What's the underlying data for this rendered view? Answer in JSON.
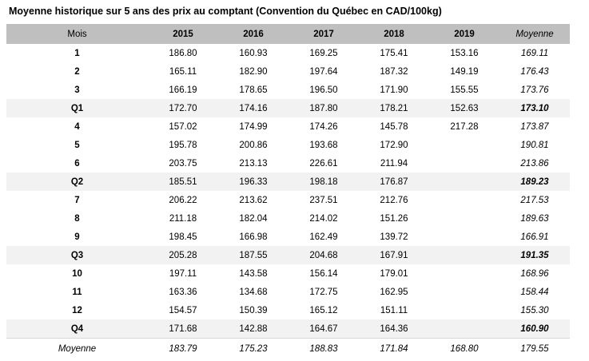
{
  "title": "Moyenne historique sur 5 ans des prix au comptant (Convention du Québec en CAD/100kg)",
  "colors": {
    "header_bg": "#bfbfbf",
    "quarter_bg": "#f2f2f2",
    "row_border": "#d9d9d9",
    "text": "#000000",
    "background": "#ffffff"
  },
  "table": {
    "columns": [
      "Mois",
      "2015",
      "2016",
      "2017",
      "2018",
      "2019",
      "Moyenne"
    ],
    "rows": [
      {
        "type": "month",
        "label": "1",
        "values": [
          "186.80",
          "160.93",
          "169.25",
          "175.41",
          "153.16"
        ],
        "moyenne": "169.11"
      },
      {
        "type": "month",
        "label": "2",
        "values": [
          "165.11",
          "182.90",
          "197.64",
          "187.32",
          "149.19"
        ],
        "moyenne": "176.43"
      },
      {
        "type": "month",
        "label": "3",
        "values": [
          "166.19",
          "178.65",
          "196.50",
          "171.90",
          "155.55"
        ],
        "moyenne": "173.76"
      },
      {
        "type": "quarter",
        "label": "Q1",
        "values": [
          "172.70",
          "174.16",
          "187.80",
          "178.21",
          "152.63"
        ],
        "moyenne": "173.10"
      },
      {
        "type": "month",
        "label": "4",
        "values": [
          "157.02",
          "174.99",
          "174.26",
          "145.78",
          "217.28"
        ],
        "moyenne": "173.87"
      },
      {
        "type": "month",
        "label": "5",
        "values": [
          "195.78",
          "200.86",
          "193.68",
          "172.90",
          ""
        ],
        "moyenne": "190.81"
      },
      {
        "type": "month",
        "label": "6",
        "values": [
          "203.75",
          "213.13",
          "226.61",
          "211.94",
          ""
        ],
        "moyenne": "213.86"
      },
      {
        "type": "quarter",
        "label": "Q2",
        "values": [
          "185.51",
          "196.33",
          "198.18",
          "176.87",
          ""
        ],
        "moyenne": "189.23"
      },
      {
        "type": "month",
        "label": "7",
        "values": [
          "206.22",
          "213.62",
          "237.51",
          "212.76",
          ""
        ],
        "moyenne": "217.53"
      },
      {
        "type": "month",
        "label": "8",
        "values": [
          "211.18",
          "182.04",
          "214.02",
          "151.26",
          ""
        ],
        "moyenne": "189.63"
      },
      {
        "type": "month",
        "label": "9",
        "values": [
          "198.45",
          "166.98",
          "162.49",
          "139.72",
          ""
        ],
        "moyenne": "166.91"
      },
      {
        "type": "quarter",
        "label": "Q3",
        "values": [
          "205.28",
          "187.55",
          "204.68",
          "167.91",
          ""
        ],
        "moyenne": "191.35"
      },
      {
        "type": "month",
        "label": "10",
        "values": [
          "197.11",
          "143.58",
          "156.14",
          "179.01",
          ""
        ],
        "moyenne": "168.96"
      },
      {
        "type": "month",
        "label": "11",
        "values": [
          "163.36",
          "134.68",
          "172.75",
          "162.95",
          ""
        ],
        "moyenne": "158.44"
      },
      {
        "type": "month",
        "label": "12",
        "values": [
          "154.57",
          "150.39",
          "165.12",
          "151.11",
          ""
        ],
        "moyenne": "155.30"
      },
      {
        "type": "quarter",
        "label": "Q4",
        "values": [
          "171.68",
          "142.88",
          "164.67",
          "164.36",
          ""
        ],
        "moyenne": "160.90"
      },
      {
        "type": "footer",
        "label": "Moyenne",
        "values": [
          "183.79",
          "175.23",
          "188.83",
          "171.84",
          "168.80"
        ],
        "moyenne": "179.55"
      }
    ]
  }
}
